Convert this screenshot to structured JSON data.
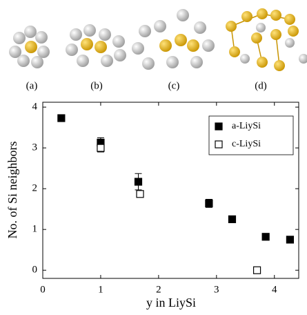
{
  "panels": [
    "(a)",
    "(b)",
    "(c)",
    "(d)"
  ],
  "chart_data": {
    "type": "scatter",
    "xlabel": "y in LiySi",
    "ylabel": "No. of Si neighbors",
    "xlim": [
      0,
      4.42
    ],
    "ylim": [
      -0.2,
      4.12
    ],
    "xticks": [
      0,
      1,
      2,
      3,
      4
    ],
    "yticks": [
      0,
      1,
      2,
      3,
      4
    ],
    "legend": "upper right",
    "series": [
      {
        "name": "a-LiySi",
        "color": "#000000",
        "marker": "filled",
        "x": [
          0.32,
          1.0,
          1.65,
          2.87,
          3.27,
          3.85,
          4.27
        ],
        "values": [
          3.73,
          3.13,
          2.17,
          1.64,
          1.25,
          0.82,
          0.75
        ],
        "errors": [
          0.04,
          0.12,
          0.2,
          0.1,
          0.03,
          0.05,
          0.06
        ]
      },
      {
        "name": "c-LiySi",
        "color": "#000000",
        "marker": "open",
        "x": [
          1.0,
          1.68,
          3.7
        ],
        "values": [
          3.0,
          1.87,
          0.0
        ],
        "errors": [
          0.1,
          0.0,
          0.0
        ]
      }
    ]
  }
}
